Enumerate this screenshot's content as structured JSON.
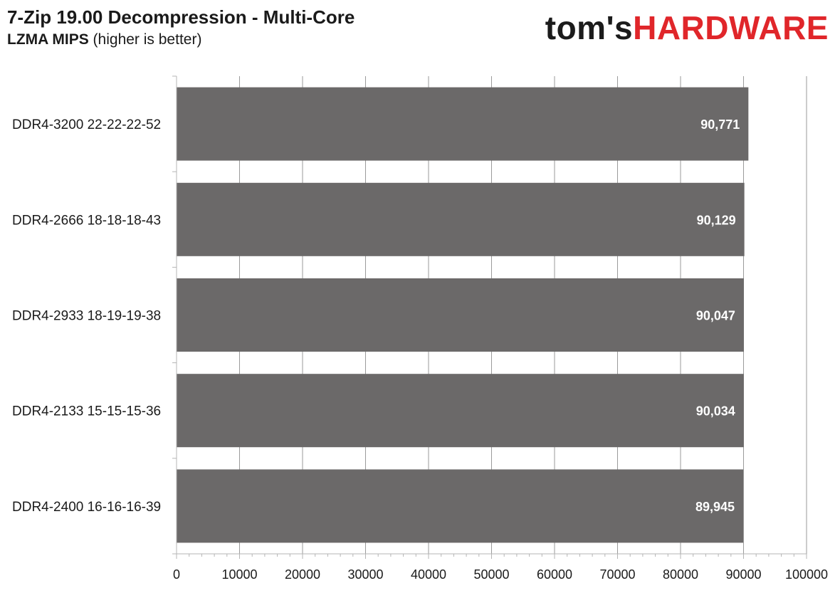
{
  "header": {
    "title": "7-Zip 19.00 Decompression - Multi-Core",
    "subtitle_bold": "LZMA MIPS",
    "subtitle_rest": " (higher is better)"
  },
  "logo": {
    "part1": "tom's",
    "part2": "HARDWARE"
  },
  "colors": {
    "bar": "#6b6969",
    "grid": "#9a9a9a",
    "axis": "#b5b5b5",
    "logo_red": "#e0262a"
  },
  "chart_data": {
    "type": "bar",
    "orientation": "horizontal",
    "title": "7-Zip 19.00 Decompression - Multi-Core",
    "xlabel": "LZMA MIPS (higher is better)",
    "categories": [
      "DDR4-3200 22-22-22-52",
      "DDR4-2666 18-18-18-43",
      "DDR4-2933 18-19-19-38",
      "DDR4-2133 15-15-15-36",
      "DDR4-2400 16-16-16-39"
    ],
    "values": [
      90771,
      90129,
      90047,
      90034,
      89945
    ],
    "value_labels": [
      "90,771",
      "90,129",
      "90,047",
      "90,034",
      "89,945"
    ],
    "xlim": [
      0,
      100000
    ],
    "xticks": [
      0,
      10000,
      20000,
      30000,
      40000,
      50000,
      60000,
      70000,
      80000,
      90000,
      100000
    ],
    "tick_labels": [
      "0",
      "10000",
      "20000",
      "30000",
      "40000",
      "50000",
      "60000",
      "70000",
      "80000",
      "90000",
      "100000"
    ],
    "minor_ticks_per_major": 4,
    "grid": true,
    "legend": "none"
  }
}
